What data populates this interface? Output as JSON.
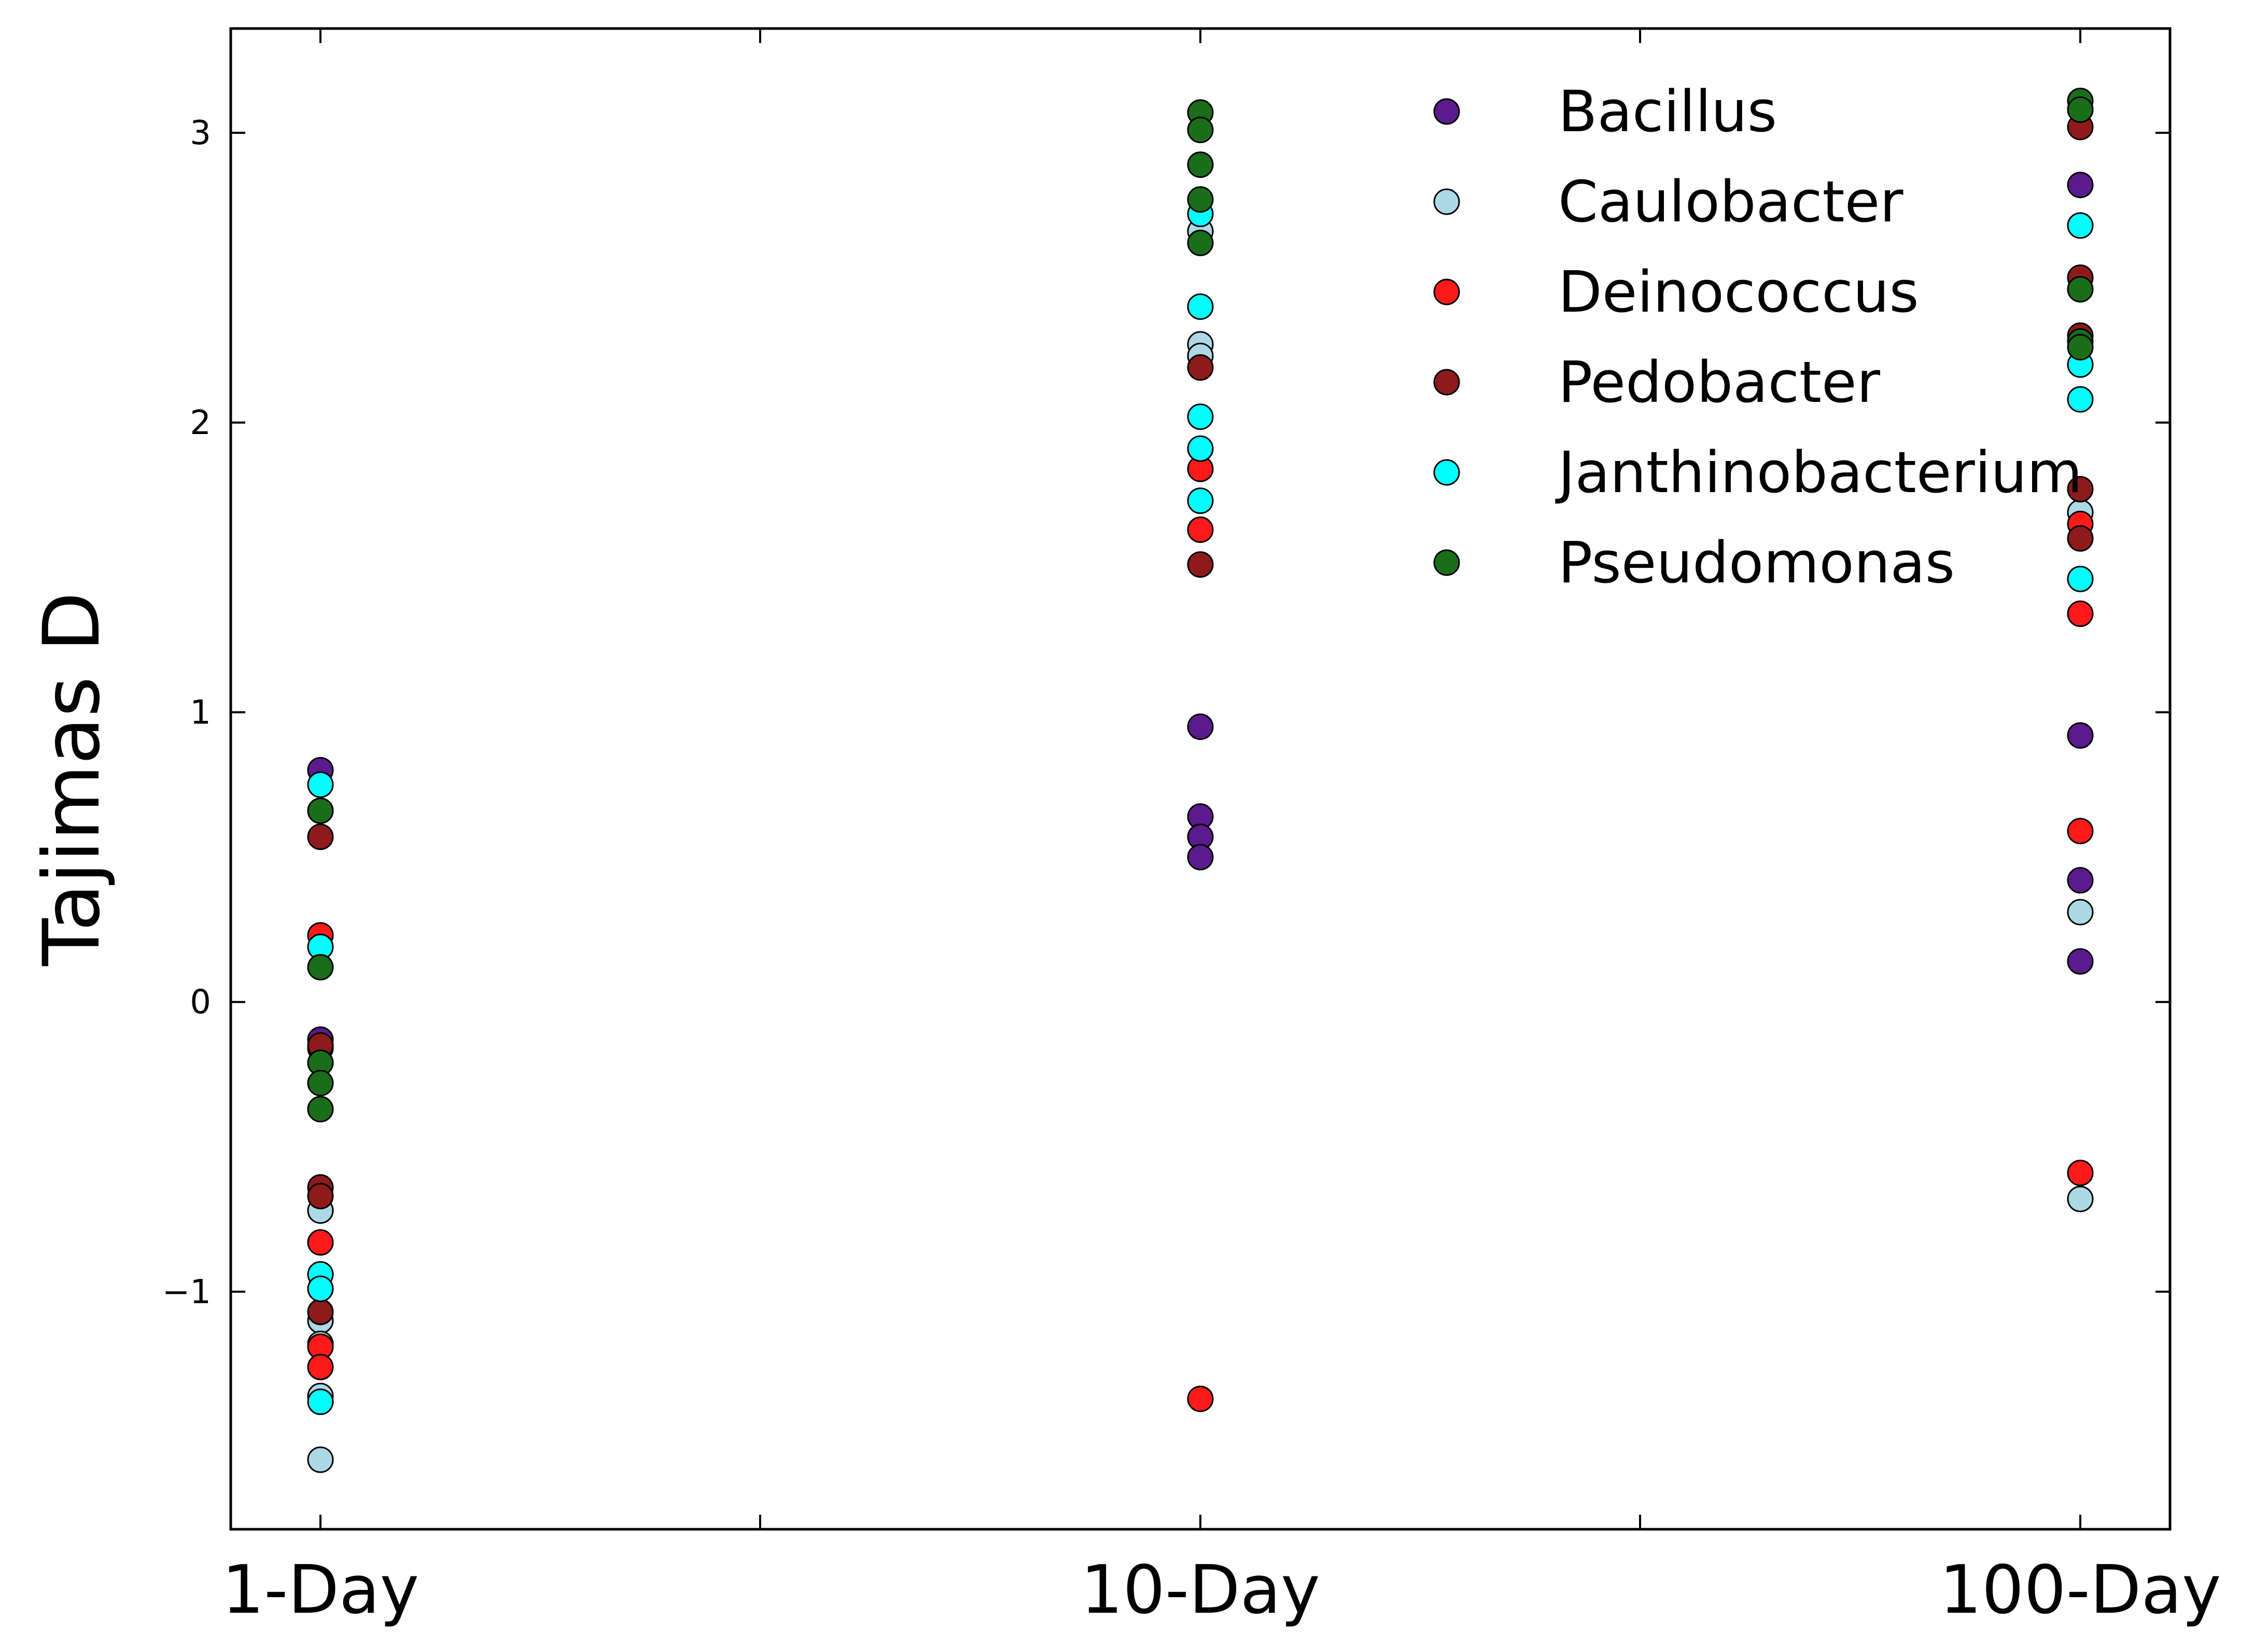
{
  "chart_data": {
    "type": "scatter",
    "title": "",
    "xlabel": "",
    "ylabel": "Tajimas D",
    "categories": [
      "1-Day",
      "10-Day",
      "100-Day"
    ],
    "ylim": [
      -1.82,
      3.36
    ],
    "yticks": [
      -1,
      0,
      1,
      2,
      3
    ],
    "ytick_labels": [
      "−1",
      "0",
      "1",
      "2",
      "3"
    ],
    "grid": false,
    "legend_position": "top-right",
    "series": [
      {
        "name": "Bacillus",
        "color": "#5b1a8e",
        "points": [
          {
            "x": "1-Day",
            "y": 0.8
          },
          {
            "x": "1-Day",
            "y": -0.13
          },
          {
            "x": "1-Day",
            "y": -0.16
          },
          {
            "x": "10-Day",
            "y": 0.95
          },
          {
            "x": "10-Day",
            "y": 0.64
          },
          {
            "x": "10-Day",
            "y": 0.57
          },
          {
            "x": "10-Day",
            "y": 0.5
          },
          {
            "x": "100-Day",
            "y": 2.82
          },
          {
            "x": "100-Day",
            "y": 0.92
          },
          {
            "x": "100-Day",
            "y": 0.42
          },
          {
            "x": "100-Day",
            "y": 0.14
          }
        ]
      },
      {
        "name": "Caulobacter",
        "color": "#add8e6",
        "points": [
          {
            "x": "1-Day",
            "y": -0.72
          },
          {
            "x": "1-Day",
            "y": -1.1
          },
          {
            "x": "1-Day",
            "y": -1.18
          },
          {
            "x": "1-Day",
            "y": -1.36
          },
          {
            "x": "1-Day",
            "y": -1.58
          },
          {
            "x": "10-Day",
            "y": 2.66
          },
          {
            "x": "10-Day",
            "y": 2.27
          },
          {
            "x": "10-Day",
            "y": 2.23
          },
          {
            "x": "100-Day",
            "y": 1.69
          },
          {
            "x": "100-Day",
            "y": 0.31
          },
          {
            "x": "100-Day",
            "y": -0.68
          }
        ]
      },
      {
        "name": "Deinococcus",
        "color": "#ff1a1a",
        "points": [
          {
            "x": "1-Day",
            "y": 0.23
          },
          {
            "x": "1-Day",
            "y": -0.83
          },
          {
            "x": "1-Day",
            "y": -1.19
          },
          {
            "x": "1-Day",
            "y": -1.26
          },
          {
            "x": "10-Day",
            "y": 1.84
          },
          {
            "x": "10-Day",
            "y": 1.63
          },
          {
            "x": "10-Day",
            "y": -1.37
          },
          {
            "x": "100-Day",
            "y": 1.65
          },
          {
            "x": "100-Day",
            "y": 1.34
          },
          {
            "x": "100-Day",
            "y": 0.59
          },
          {
            "x": "100-Day",
            "y": -0.59
          }
        ]
      },
      {
        "name": "Pedobacter",
        "color": "#8e1a1a",
        "points": [
          {
            "x": "1-Day",
            "y": 0.57
          },
          {
            "x": "1-Day",
            "y": -0.15
          },
          {
            "x": "1-Day",
            "y": -0.64
          },
          {
            "x": "1-Day",
            "y": -0.67
          },
          {
            "x": "1-Day",
            "y": -1.07
          },
          {
            "x": "10-Day",
            "y": 2.19
          },
          {
            "x": "10-Day",
            "y": 1.51
          },
          {
            "x": "100-Day",
            "y": 3.02
          },
          {
            "x": "100-Day",
            "y": 2.5
          },
          {
            "x": "100-Day",
            "y": 2.3
          },
          {
            "x": "100-Day",
            "y": 1.77
          },
          {
            "x": "100-Day",
            "y": 1.6
          }
        ]
      },
      {
        "name": "Janthinobacterium",
        "color": "#00ffff",
        "points": [
          {
            "x": "1-Day",
            "y": 0.75
          },
          {
            "x": "1-Day",
            "y": 0.19
          },
          {
            "x": "1-Day",
            "y": -0.94
          },
          {
            "x": "1-Day",
            "y": -0.99
          },
          {
            "x": "1-Day",
            "y": -1.38
          },
          {
            "x": "10-Day",
            "y": 2.72
          },
          {
            "x": "10-Day",
            "y": 2.4
          },
          {
            "x": "10-Day",
            "y": 2.02
          },
          {
            "x": "10-Day",
            "y": 1.91
          },
          {
            "x": "10-Day",
            "y": 1.73
          },
          {
            "x": "100-Day",
            "y": 2.68
          },
          {
            "x": "100-Day",
            "y": 2.2
          },
          {
            "x": "100-Day",
            "y": 2.08
          },
          {
            "x": "100-Day",
            "y": 1.46
          }
        ]
      },
      {
        "name": "Pseudomonas",
        "color": "#1a6e1a",
        "points": [
          {
            "x": "1-Day",
            "y": 0.66
          },
          {
            "x": "1-Day",
            "y": 0.12
          },
          {
            "x": "1-Day",
            "y": -0.21
          },
          {
            "x": "1-Day",
            "y": -0.28
          },
          {
            "x": "1-Day",
            "y": -0.37
          },
          {
            "x": "10-Day",
            "y": 3.07
          },
          {
            "x": "10-Day",
            "y": 3.01
          },
          {
            "x": "10-Day",
            "y": 2.89
          },
          {
            "x": "10-Day",
            "y": 2.77
          },
          {
            "x": "10-Day",
            "y": 2.62
          },
          {
            "x": "100-Day",
            "y": 3.11
          },
          {
            "x": "100-Day",
            "y": 3.08
          },
          {
            "x": "100-Day",
            "y": 2.46
          },
          {
            "x": "100-Day",
            "y": 2.28
          },
          {
            "x": "100-Day",
            "y": 2.26
          }
        ]
      }
    ]
  }
}
